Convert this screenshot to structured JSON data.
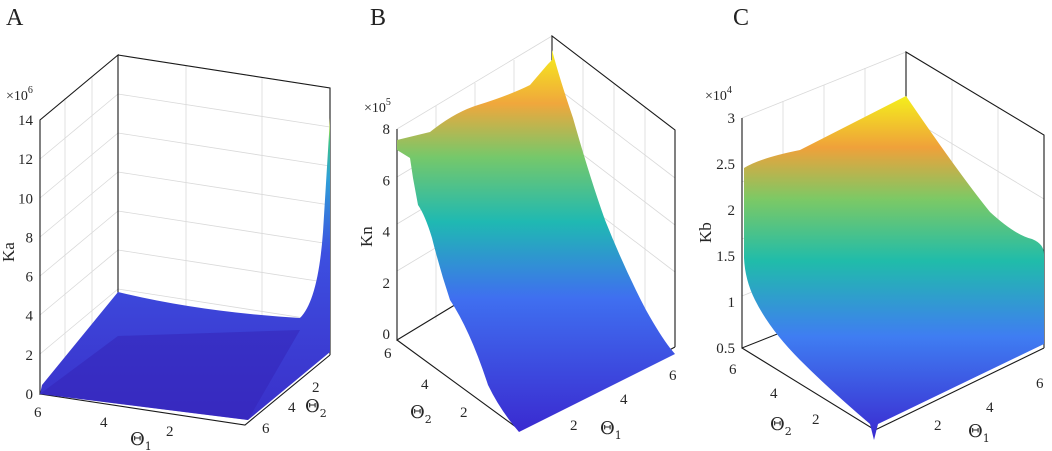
{
  "colors": {
    "low": "#3b2ad1",
    "mid": "#1fb8b0",
    "high": "#f4ef1c"
  },
  "chart_data": [
    {
      "panel": "A",
      "type": "surface",
      "zlabel": "Ka",
      "zexponent": "6",
      "xlabel_base": "Θ",
      "xlabel_sub": "1",
      "ylabel_base": "Θ",
      "ylabel_sub": "2",
      "zlim": [
        0,
        14
      ],
      "zticks": [
        "0",
        "2",
        "4",
        "6",
        "8",
        "10",
        "12",
        "14"
      ],
      "xticks": [
        "6",
        "4",
        "2"
      ],
      "yticks": [
        "2",
        "4",
        "6"
      ],
      "x": [
        1,
        6
      ],
      "y": [
        1,
        6
      ],
      "description_points": {
        "min_z": 0.2,
        "max_z": 14
      }
    },
    {
      "panel": "B",
      "type": "surface",
      "zlabel": "Kn",
      "zexponent": "5",
      "xlabel_base": "Θ",
      "xlabel_sub": "1",
      "ylabel_base": "Θ",
      "ylabel_sub": "2",
      "zlim": [
        0,
        8
      ],
      "zticks": [
        "0",
        "2",
        "4",
        "6",
        "8"
      ],
      "xticks": [
        "2",
        "4",
        "6"
      ],
      "yticks": [
        "6",
        "4",
        "2"
      ],
      "x": [
        1,
        6
      ],
      "y": [
        1,
        6
      ],
      "description_points": {
        "min_z": 0,
        "max_z": 8.6
      }
    },
    {
      "panel": "C",
      "type": "surface",
      "zlabel": "Kb",
      "zexponent": "4",
      "xlabel_base": "Θ",
      "xlabel_sub": "1",
      "ylabel_base": "Θ",
      "ylabel_sub": "2",
      "zlim": [
        0.5,
        3
      ],
      "zticks": [
        "0.5",
        "1",
        "1.5",
        "2",
        "2.5",
        "3"
      ],
      "xticks": [
        "2",
        "4",
        "6"
      ],
      "yticks": [
        "6",
        "4",
        "2"
      ],
      "x": [
        1,
        6
      ],
      "y": [
        1,
        6
      ],
      "description_points": {
        "min_z": 0.5,
        "max_z": 3
      }
    }
  ]
}
